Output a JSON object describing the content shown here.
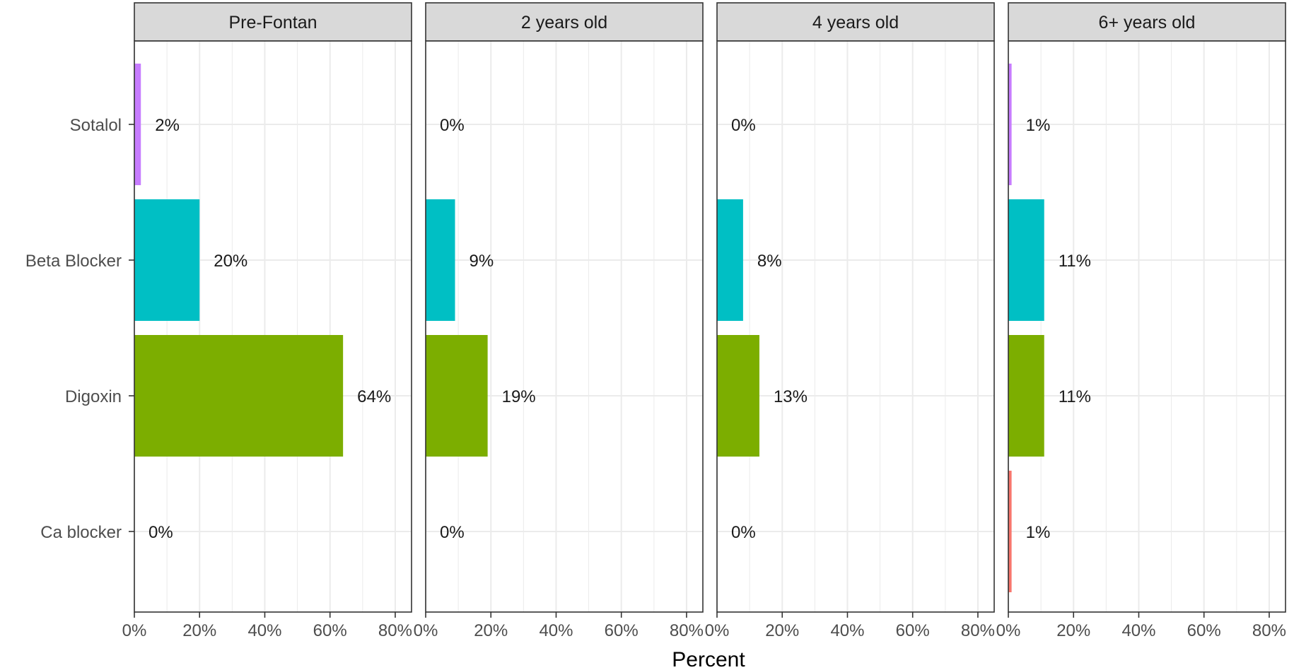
{
  "chart_data": {
    "type": "bar",
    "orientation": "horizontal",
    "facet_by": "panel",
    "panels": [
      "Pre-Fontan",
      "2 years old",
      "4 years old",
      "6+ years old"
    ],
    "categories": [
      "Sotalol",
      "Beta Blocker",
      "Digoxin",
      "Ca blocker"
    ],
    "values": [
      [
        2,
        20,
        64,
        0
      ],
      [
        0,
        9,
        19,
        0
      ],
      [
        0,
        8,
        13,
        0
      ],
      [
        1,
        11,
        11,
        1
      ]
    ],
    "labels": [
      [
        "2%",
        "20%",
        "64%",
        "0%"
      ],
      [
        "0%",
        "9%",
        "19%",
        "0%"
      ],
      [
        "0%",
        "8%",
        "13%",
        "0%"
      ],
      [
        "1%",
        "11%",
        "11%",
        "1%"
      ]
    ],
    "colors": {
      "Sotalol": "#C77CFF",
      "Beta Blocker": "#00BFC4",
      "Digoxin": "#7CAE00",
      "Ca blocker": "#F8766D"
    },
    "xlim": [
      0,
      85
    ],
    "xticks": [
      0,
      20,
      40,
      60,
      80
    ],
    "xtick_labels": [
      "0%",
      "20%",
      "40%",
      "60%",
      "80%"
    ],
    "xlabel": "Percent",
    "ylabel": "",
    "title": "",
    "grid": true,
    "legend": "none"
  }
}
